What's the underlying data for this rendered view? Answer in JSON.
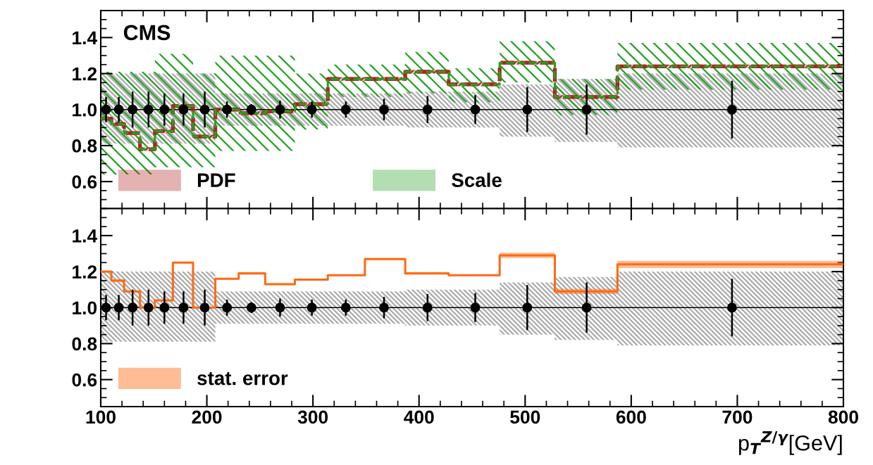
{
  "chart_data": [
    {
      "type": "step",
      "annotations": [
        "CMS"
      ],
      "xlim": [
        100,
        800
      ],
      "xticks": [
        100,
        200,
        300,
        400,
        500,
        600,
        700,
        800
      ],
      "ylim": [
        0.45,
        1.55
      ],
      "yticks": [
        0.6,
        0.8,
        {
          "value": 1.0,
          "label": "1.0"
        },
        1.2,
        1.4
      ],
      "tick_labels": "y",
      "legend": "bottom left",
      "grid": false,
      "x": [
        100,
        110,
        122,
        137,
        151,
        168,
        187,
        208,
        230,
        255,
        283,
        314,
        349,
        387,
        428,
        476,
        528,
        587,
        800
      ],
      "series": [
        {
          "type": "step",
          "color": "#000000",
          "values": [
            1.0,
            1.0,
            1.0,
            1.0,
            1.0,
            1.0,
            1.0,
            1.0,
            1.0,
            1.0,
            1.0,
            1.0,
            1.0,
            1.0,
            1.0,
            1.0,
            1.0,
            1.0,
            1.0
          ],
          "lower": [
            0.81,
            0.81,
            0.81,
            0.81,
            0.81,
            0.81,
            0.81,
            0.91,
            0.91,
            0.91,
            0.91,
            0.91,
            0.91,
            0.9,
            0.9,
            0.85,
            0.82,
            0.79,
            0.79
          ],
          "upper": [
            1.2,
            1.2,
            1.2,
            1.2,
            1.2,
            1.2,
            1.2,
            1.09,
            1.09,
            1.09,
            1.09,
            1.09,
            1.09,
            1.1,
            1.1,
            1.14,
            1.17,
            1.2,
            1.2
          ]
        },
        {
          "type": "step",
          "name": "PDF",
          "color": "#b22222",
          "line_style": "dashed",
          "values": [
            0.95,
            0.92,
            0.87,
            0.78,
            0.88,
            1.02,
            0.85,
            1.0,
            0.98,
            0.99,
            1.03,
            1.17,
            1.17,
            1.21,
            1.14,
            1.26,
            1.07,
            1.24,
            1.24
          ],
          "lower": [
            0.94,
            0.91,
            0.86,
            0.77,
            0.87,
            1.01,
            0.84,
            0.99,
            0.97,
            0.98,
            1.02,
            1.16,
            1.16,
            1.2,
            1.13,
            1.25,
            1.06,
            1.23,
            1.23
          ],
          "upper": [
            0.96,
            0.93,
            0.88,
            0.79,
            0.89,
            1.03,
            0.86,
            1.01,
            0.99,
            1.0,
            1.04,
            1.18,
            1.18,
            1.22,
            1.15,
            1.27,
            1.08,
            1.25,
            1.25
          ]
        },
        {
          "type": "step",
          "name": "Scale",
          "color": "#22a022",
          "line_style": "dashed",
          "values": [
            0.95,
            0.92,
            0.87,
            0.78,
            0.88,
            1.02,
            0.85,
            1.0,
            0.98,
            0.99,
            1.03,
            1.17,
            1.17,
            1.21,
            1.14,
            1.26,
            1.07,
            1.24,
            1.24
          ],
          "lower": [
            0.64,
            0.64,
            0.64,
            0.64,
            0.68,
            0.68,
            0.68,
            0.77,
            0.77,
            0.77,
            0.89,
            1.07,
            1.07,
            1.09,
            1.04,
            1.15,
            0.97,
            1.11,
            1.11
          ],
          "upper": [
            1.21,
            1.21,
            1.21,
            1.21,
            1.31,
            1.31,
            1.2,
            1.3,
            1.3,
            1.3,
            1.2,
            1.25,
            1.25,
            1.32,
            1.23,
            1.38,
            1.17,
            1.37,
            1.37
          ]
        },
        {
          "type": "scatter",
          "color": "#000000",
          "marker": "circle",
          "x": [
            105,
            117,
            130,
            145,
            160,
            178,
            198,
            219,
            242,
            269,
            299,
            331,
            367,
            408,
            453,
            502,
            558,
            695
          ],
          "values": [
            1.0,
            1.0,
            1.0,
            1.0,
            1.0,
            1.0,
            1.0,
            1.0,
            1.0,
            1.0,
            1.0,
            1.0,
            1.0,
            1.0,
            1.0,
            1.0,
            1.0,
            1.0
          ],
          "errors": [
            0.07,
            0.07,
            0.1,
            0.1,
            0.09,
            0.09,
            0.1,
            0.045,
            0.03,
            0.05,
            0.045,
            0.045,
            0.06,
            0.075,
            0.08,
            0.125,
            0.14,
            0.16
          ]
        }
      ]
    },
    {
      "type": "step",
      "xlabel": "p$_{T}$$^{Z/γ}$[GeV]",
      "xlim": [
        100,
        800
      ],
      "xticks": [
        100,
        200,
        300,
        400,
        500,
        600,
        700,
        800
      ],
      "ylim": [
        0.45,
        1.55
      ],
      "yticks": [
        0.6,
        0.8,
        {
          "value": 1.0,
          "label": "1.0"
        },
        1.2,
        1.4
      ],
      "legend": "bottom left",
      "grid": false,
      "x": [
        100,
        110,
        122,
        137,
        151,
        168,
        187,
        208,
        230,
        255,
        283,
        314,
        349,
        387,
        428,
        476,
        528,
        587,
        800
      ],
      "series": [
        {
          "type": "step",
          "color": "#000000",
          "values": [
            1.0,
            1.0,
            1.0,
            1.0,
            1.0,
            1.0,
            1.0,
            1.0,
            1.0,
            1.0,
            1.0,
            1.0,
            1.0,
            1.0,
            1.0,
            1.0,
            1.0,
            1.0,
            1.0
          ],
          "lower": [
            0.81,
            0.81,
            0.81,
            0.81,
            0.81,
            0.81,
            0.81,
            0.91,
            0.91,
            0.91,
            0.91,
            0.91,
            0.91,
            0.9,
            0.9,
            0.85,
            0.82,
            0.79,
            0.79
          ],
          "upper": [
            1.2,
            1.2,
            1.2,
            1.2,
            1.2,
            1.2,
            1.2,
            1.09,
            1.09,
            1.09,
            1.09,
            1.09,
            1.09,
            1.1,
            1.1,
            1.14,
            1.17,
            1.2,
            1.2
          ]
        },
        {
          "type": "step",
          "name": "stat. error",
          "color": "#ff6a13",
          "values": [
            1.2,
            1.15,
            1.09,
            1.0,
            1.04,
            1.25,
            1.0,
            1.16,
            1.19,
            1.13,
            1.155,
            1.18,
            1.27,
            1.19,
            1.18,
            1.29,
            1.09,
            1.24,
            1.24
          ],
          "lower": [
            1.195,
            1.145,
            1.085,
            0.995,
            1.035,
            1.245,
            0.995,
            1.155,
            1.185,
            1.125,
            1.15,
            1.175,
            1.265,
            1.185,
            1.175,
            1.275,
            1.075,
            1.22,
            1.22
          ],
          "upper": [
            1.205,
            1.155,
            1.095,
            1.005,
            1.045,
            1.255,
            1.005,
            1.165,
            1.195,
            1.135,
            1.16,
            1.185,
            1.275,
            1.195,
            1.185,
            1.305,
            1.105,
            1.26,
            1.26
          ]
        },
        {
          "type": "scatter",
          "color": "#000000",
          "marker": "circle",
          "x": [
            105,
            117,
            130,
            145,
            160,
            178,
            198,
            219,
            242,
            269,
            299,
            331,
            367,
            408,
            453,
            502,
            558,
            695
          ],
          "values": [
            1.0,
            1.0,
            1.0,
            1.0,
            1.0,
            1.0,
            1.0,
            1.0,
            1.0,
            1.0,
            1.0,
            1.0,
            1.0,
            1.0,
            1.0,
            1.0,
            1.0,
            1.0
          ],
          "errors": [
            0.07,
            0.07,
            0.1,
            0.1,
            0.09,
            0.09,
            0.1,
            0.045,
            0.03,
            0.05,
            0.045,
            0.045,
            0.06,
            0.075,
            0.08,
            0.125,
            0.14,
            0.16
          ]
        }
      ]
    }
  ]
}
